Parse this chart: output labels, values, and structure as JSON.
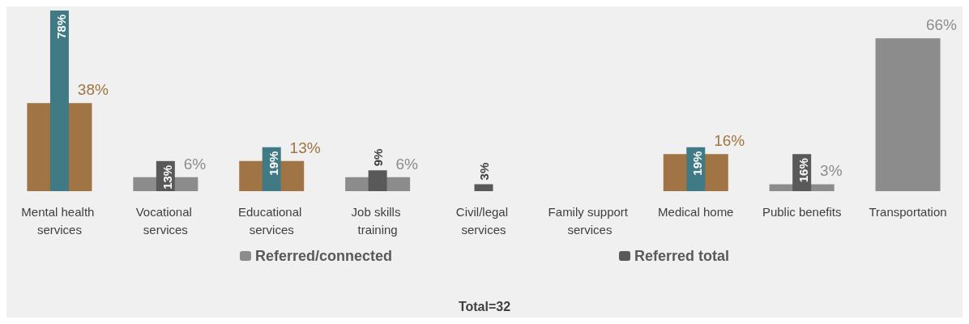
{
  "chart_data": {
    "type": "bar",
    "categories": [
      "Mental health services",
      "Vocational services",
      "Educational services",
      "Job skills training",
      "Civil/legal services",
      "Family support services",
      "Medical home",
      "Public benefits",
      "Transportation"
    ],
    "series": [
      {
        "name": "Referred/connected",
        "color": "#8c8c8c",
        "colors": [
          "#a07444",
          "#8c8c8c",
          "#a07444",
          "#8c8c8c",
          "#8c8c8c",
          "#8c8c8c",
          "#a07444",
          "#8c8c8c",
          "#8c8c8c"
        ],
        "values": [
          38,
          6,
          13,
          6,
          null,
          null,
          16,
          3,
          66
        ],
        "value_labels": [
          "38%",
          "6%",
          "13%",
          "6%",
          null,
          null,
          "16%",
          "3%",
          "66%"
        ]
      },
      {
        "name": "Referred total",
        "color": "#595959",
        "colors": [
          "#407a84",
          "#595959",
          "#407a84",
          "#595959",
          "#595959",
          "#595959",
          "#407a84",
          "#595959",
          "#595959"
        ],
        "values": [
          78,
          13,
          19,
          9,
          3,
          null,
          19,
          16,
          null
        ],
        "value_labels": [
          "78%",
          "13%",
          "19%",
          "9%",
          "3%",
          null,
          "19%",
          "16%",
          null
        ]
      }
    ],
    "legend": "bottom",
    "annotations": [
      "Total=32"
    ]
  }
}
